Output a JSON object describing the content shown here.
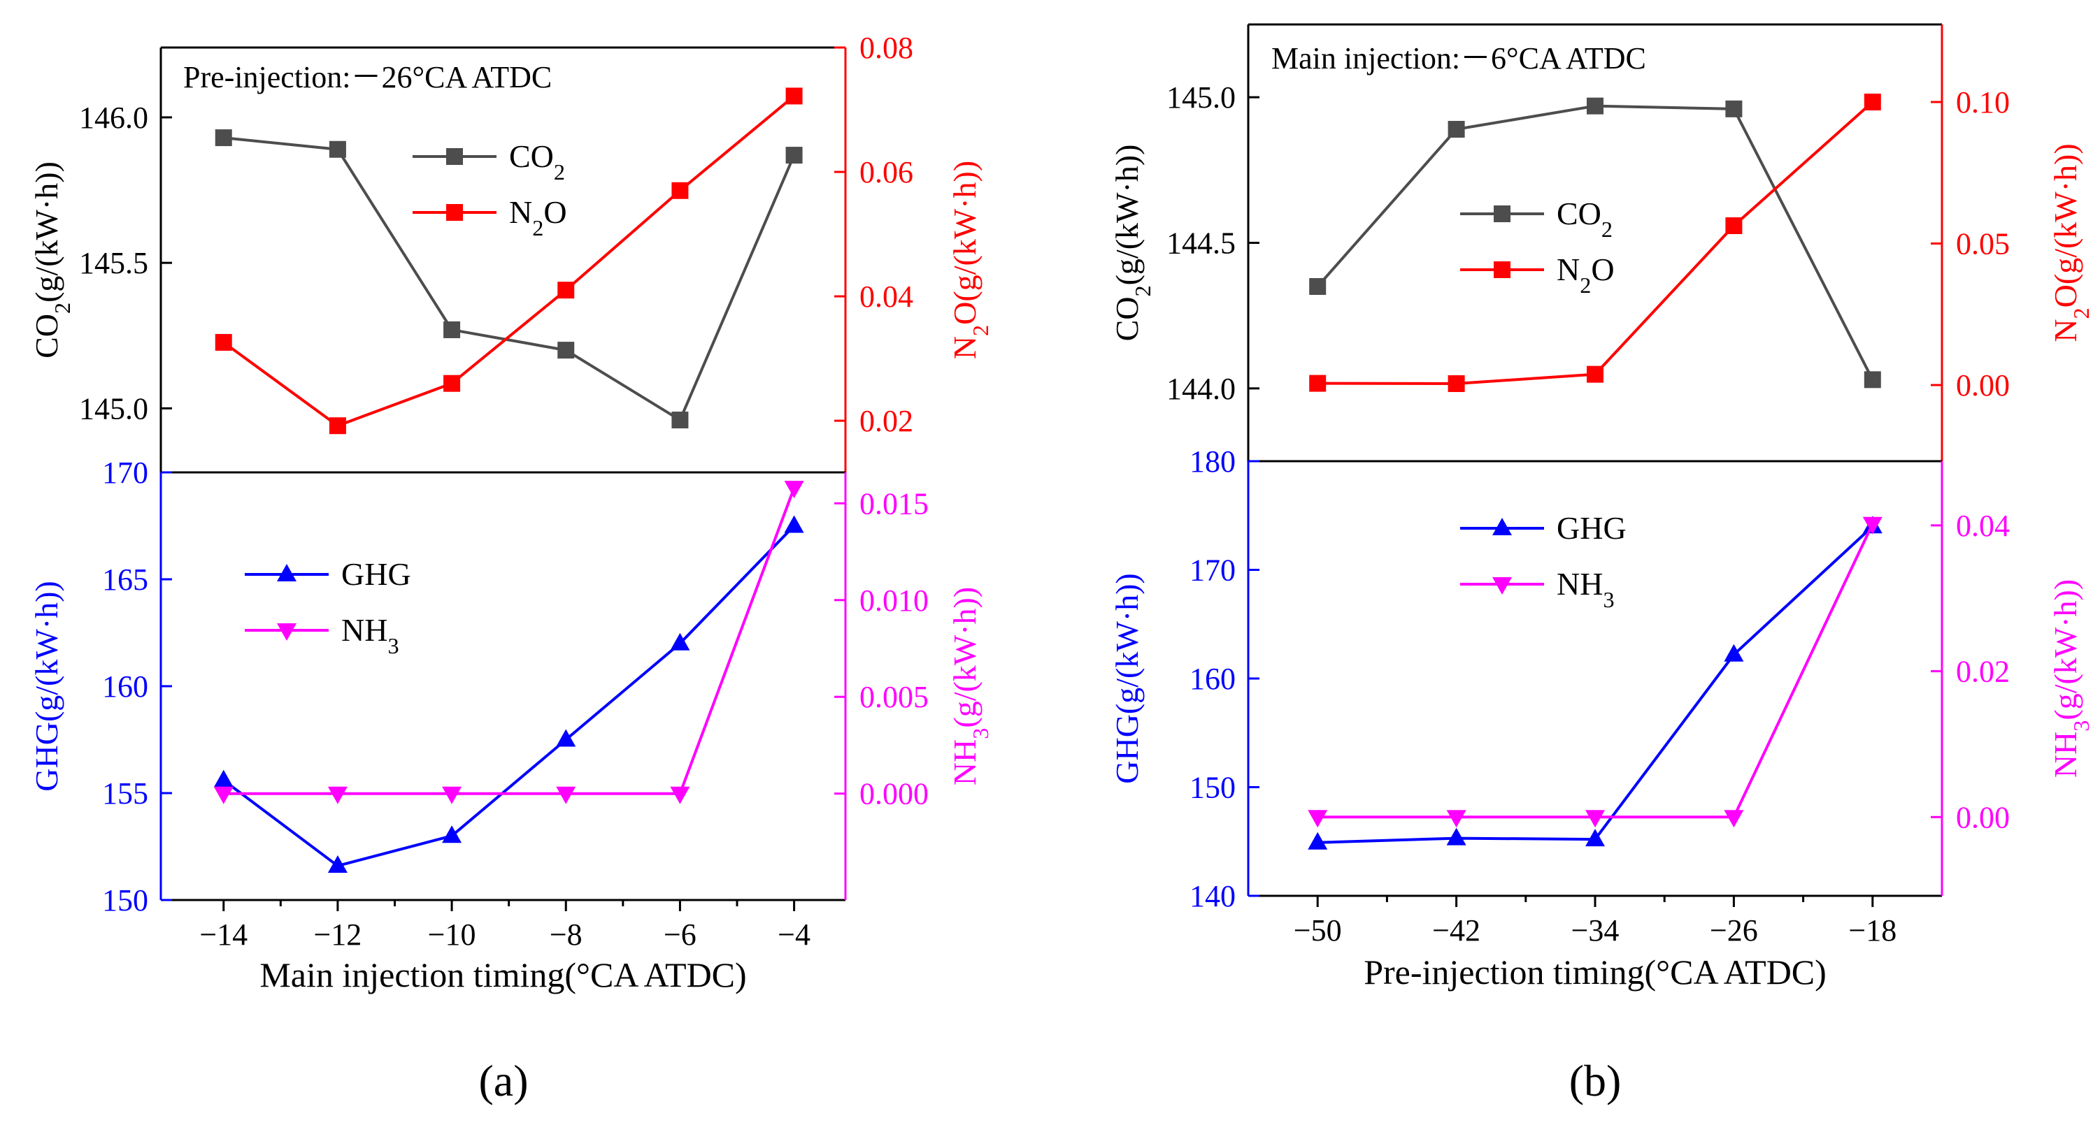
{
  "colors": {
    "co2": "#4d4d4d",
    "n2o": "#ff0000",
    "ghg": "#0000ff",
    "nh3": "#ff00ff",
    "frame": "#000000"
  },
  "chart_data": [
    {
      "type": "line",
      "panel_label": "(a)",
      "xlabel": "Main injection timing(°CA ATDC)",
      "x_values": [
        -14,
        -12,
        -10,
        -8,
        -6,
        -4
      ],
      "xlim": [
        -15.1,
        -3.1
      ],
      "x_ticks": [
        "−14",
        "−12",
        "−10",
        "−8",
        "−6",
        "−4"
      ],
      "top": {
        "annotation": "Pre-injection:－26°CA ATDC",
        "left_axis": {
          "label_main": "CO",
          "label_sub": "2",
          "label_rest": "(g/(kW·h))",
          "ylim": [
            144.78,
            146.24
          ],
          "ticks": [
            "145.0",
            "145.5",
            "146.0"
          ],
          "tick_values": [
            145.0,
            145.5,
            146.0
          ]
        },
        "right_axis": {
          "label_main": "N",
          "label_sub": "2",
          "label_rest": "O(g/(kW·h))",
          "ylim": [
            0.0117,
            0.08
          ],
          "ticks": [
            "0.02",
            "0.04",
            "0.06",
            "0.08"
          ],
          "tick_values": [
            0.02,
            0.04,
            0.06,
            0.08
          ]
        },
        "series": [
          {
            "name": "CO2",
            "legend_main": "CO",
            "legend_sub": "2",
            "legend_rest": "",
            "axis": "left",
            "marker": "square",
            "color": "#4d4d4d",
            "values": [
              145.93,
              145.89,
              145.27,
              145.2,
              144.96,
              145.87
            ]
          },
          {
            "name": "N2O",
            "legend_main": "N",
            "legend_sub": "2",
            "legend_rest": "O",
            "axis": "right",
            "marker": "square",
            "color": "#ff0000",
            "values": [
              0.0326,
              0.0192,
              0.026,
              0.041,
              0.057,
              0.0722
            ]
          }
        ]
      },
      "bottom": {
        "left_axis": {
          "label_main": "GHG(g/(kW·h))",
          "ylim": [
            150,
            170
          ],
          "ticks": [
            "150",
            "155",
            "160",
            "165",
            "170"
          ],
          "tick_values": [
            150,
            155,
            160,
            165,
            170
          ]
        },
        "right_axis": {
          "label_main": "NH",
          "label_sub": "3",
          "label_rest": "(g/(kW·h))",
          "ylim": [
            -0.0055,
            0.0166
          ],
          "ticks": [
            "0.000",
            "0.005",
            "0.010",
            "0.015"
          ],
          "tick_values": [
            0.0,
            0.005,
            0.01,
            0.015
          ]
        },
        "series": [
          {
            "name": "GHG",
            "legend_main": "GHG",
            "legend_sub": "",
            "legend_rest": "",
            "axis": "left",
            "marker": "triangle-up",
            "color": "#0000ff",
            "values": [
              155.6,
              151.6,
              153.0,
              157.5,
              162.0,
              167.5
            ]
          },
          {
            "name": "NH3",
            "legend_main": "NH",
            "legend_sub": "3",
            "legend_rest": "",
            "axis": "right",
            "marker": "triangle-down",
            "color": "#ff00ff",
            "values": [
              0.0,
              0.0,
              0.0,
              0.0,
              0.0,
              0.0158
            ]
          }
        ]
      }
    },
    {
      "type": "line",
      "panel_label": "(b)",
      "xlabel": "Pre-injection timing(°CA ATDC)",
      "x_values": [
        -50,
        -42,
        -34,
        -26,
        -18
      ],
      "xlim": [
        -54,
        -14
      ],
      "x_ticks": [
        "−50",
        "−42",
        "−34",
        "−26",
        "−18"
      ],
      "top": {
        "annotation": "Main injection:－6°CA ATDC",
        "left_axis": {
          "label_main": "CO",
          "label_sub": "2",
          "label_rest": "(g/(kW·h))",
          "ylim": [
            143.75,
            145.25
          ],
          "ticks": [
            "144.0",
            "144.5",
            "145.0"
          ],
          "tick_values": [
            144.0,
            144.5,
            145.0
          ]
        },
        "right_axis": {
          "label_main": "N",
          "label_sub": "2",
          "label_rest": "O(g/(kW·h))",
          "ylim": [
            -0.0269,
            0.1274
          ],
          "ticks": [
            "0.00",
            "0.05",
            "0.10"
          ],
          "tick_values": [
            0.0,
            0.05,
            0.1
          ]
        },
        "series": [
          {
            "name": "CO2",
            "legend_main": "CO",
            "legend_sub": "2",
            "legend_rest": "",
            "axis": "left",
            "marker": "square",
            "color": "#4d4d4d",
            "values": [
              144.35,
              144.89,
              144.97,
              144.96,
              144.03
            ]
          },
          {
            "name": "N2O",
            "legend_main": "N",
            "legend_sub": "2",
            "legend_rest": "O",
            "axis": "right",
            "marker": "square",
            "color": "#ff0000",
            "values": [
              0.0006,
              0.0005,
              0.0038,
              0.0563,
              0.1
            ]
          }
        ]
      },
      "bottom": {
        "left_axis": {
          "label_main": "GHG(g/(kW·h))",
          "ylim": [
            140,
            180
          ],
          "ticks": [
            "140",
            "150",
            "160",
            "170",
            "180"
          ],
          "tick_values": [
            140,
            150,
            160,
            170,
            180
          ]
        },
        "right_axis": {
          "label_main": "NH",
          "label_sub": "3",
          "label_rest": "(g/(kW·h))",
          "ylim": [
            -0.0108,
            0.0488
          ],
          "ticks": [
            "0.00",
            "0.02",
            "0.04"
          ],
          "tick_values": [
            0.0,
            0.02,
            0.04
          ]
        },
        "series": [
          {
            "name": "GHG",
            "legend_main": "GHG",
            "legend_sub": "",
            "legend_rest": "",
            "axis": "left",
            "marker": "triangle-up",
            "color": "#0000ff",
            "values": [
              144.9,
              145.3,
              145.2,
              162.2,
              174.0
            ]
          },
          {
            "name": "NH3",
            "legend_main": "NH",
            "legend_sub": "3",
            "legend_rest": "",
            "axis": "right",
            "marker": "triangle-down",
            "color": "#ff00ff",
            "values": [
              0.0,
              0.0,
              0.0,
              0.0,
              0.0402
            ]
          }
        ]
      }
    }
  ]
}
